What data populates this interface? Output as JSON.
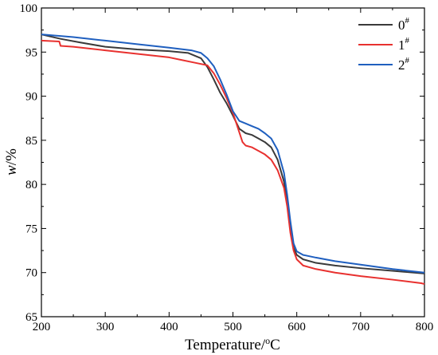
{
  "chart_data": {
    "type": "line",
    "title": "",
    "xlabel_main": "Temperature/",
    "xlabel_sup": "o",
    "xlabel_unit": "C",
    "ylabel_var": "w",
    "ylabel_unit": "/%",
    "xlim": [
      200,
      800
    ],
    "ylim": [
      65,
      100
    ],
    "x_ticks": [
      200,
      300,
      400,
      500,
      600,
      700,
      800
    ],
    "y_ticks": [
      65,
      70,
      75,
      80,
      85,
      90,
      95,
      100
    ],
    "grid": false,
    "legend_position": "top-right",
    "series": [
      {
        "name": "0",
        "name_sup": "#",
        "color": "#3a3a3a",
        "points": [
          [
            200,
            97.0
          ],
          [
            230,
            96.5
          ],
          [
            260,
            96.1
          ],
          [
            300,
            95.6
          ],
          [
            350,
            95.3
          ],
          [
            400,
            95.1
          ],
          [
            430,
            94.9
          ],
          [
            450,
            94.3
          ],
          [
            460,
            93.3
          ],
          [
            470,
            91.9
          ],
          [
            480,
            90.4
          ],
          [
            490,
            89.2
          ],
          [
            500,
            87.8
          ],
          [
            510,
            86.3
          ],
          [
            520,
            85.8
          ],
          [
            530,
            85.6
          ],
          [
            540,
            85.2
          ],
          [
            550,
            84.8
          ],
          [
            560,
            84.2
          ],
          [
            570,
            82.8
          ],
          [
            580,
            80.3
          ],
          [
            585,
            78.0
          ],
          [
            590,
            75.0
          ],
          [
            595,
            72.8
          ],
          [
            600,
            72.0
          ],
          [
            610,
            71.5
          ],
          [
            630,
            71.1
          ],
          [
            660,
            70.8
          ],
          [
            700,
            70.5
          ],
          [
            750,
            70.2
          ],
          [
            800,
            69.9
          ]
        ]
      },
      {
        "name": "1",
        "name_sup": "#",
        "color": "#e8312f",
        "points": [
          [
            200,
            96.3
          ],
          [
            228,
            96.2
          ],
          [
            230,
            95.7
          ],
          [
            250,
            95.6
          ],
          [
            300,
            95.2
          ],
          [
            350,
            94.8
          ],
          [
            400,
            94.4
          ],
          [
            420,
            94.1
          ],
          [
            440,
            93.8
          ],
          [
            460,
            93.5
          ],
          [
            470,
            92.6
          ],
          [
            480,
            91.3
          ],
          [
            490,
            89.8
          ],
          [
            500,
            88.1
          ],
          [
            510,
            85.9
          ],
          [
            515,
            84.8
          ],
          [
            520,
            84.4
          ],
          [
            530,
            84.2
          ],
          [
            540,
            83.8
          ],
          [
            550,
            83.4
          ],
          [
            560,
            82.8
          ],
          [
            570,
            81.6
          ],
          [
            580,
            79.6
          ],
          [
            585,
            77.5
          ],
          [
            590,
            74.5
          ],
          [
            595,
            72.5
          ],
          [
            600,
            71.5
          ],
          [
            610,
            70.8
          ],
          [
            630,
            70.4
          ],
          [
            660,
            70.0
          ],
          [
            700,
            69.6
          ],
          [
            750,
            69.2
          ],
          [
            795,
            68.8
          ],
          [
            800,
            68.7
          ]
        ]
      },
      {
        "name": "2",
        "name_sup": "#",
        "color": "#1f5fbf",
        "points": [
          [
            200,
            97.0
          ],
          [
            250,
            96.7
          ],
          [
            300,
            96.3
          ],
          [
            350,
            95.9
          ],
          [
            400,
            95.5
          ],
          [
            435,
            95.2
          ],
          [
            450,
            94.9
          ],
          [
            460,
            94.3
          ],
          [
            470,
            93.4
          ],
          [
            480,
            91.9
          ],
          [
            490,
            90.2
          ],
          [
            500,
            88.3
          ],
          [
            510,
            87.2
          ],
          [
            520,
            86.9
          ],
          [
            530,
            86.6
          ],
          [
            540,
            86.3
          ],
          [
            550,
            85.8
          ],
          [
            560,
            85.2
          ],
          [
            570,
            83.9
          ],
          [
            580,
            81.3
          ],
          [
            585,
            78.8
          ],
          [
            590,
            75.8
          ],
          [
            595,
            73.3
          ],
          [
            600,
            72.4
          ],
          [
            610,
            72.0
          ],
          [
            630,
            71.7
          ],
          [
            660,
            71.3
          ],
          [
            700,
            70.9
          ],
          [
            750,
            70.4
          ],
          [
            800,
            70.0
          ]
        ]
      }
    ]
  }
}
